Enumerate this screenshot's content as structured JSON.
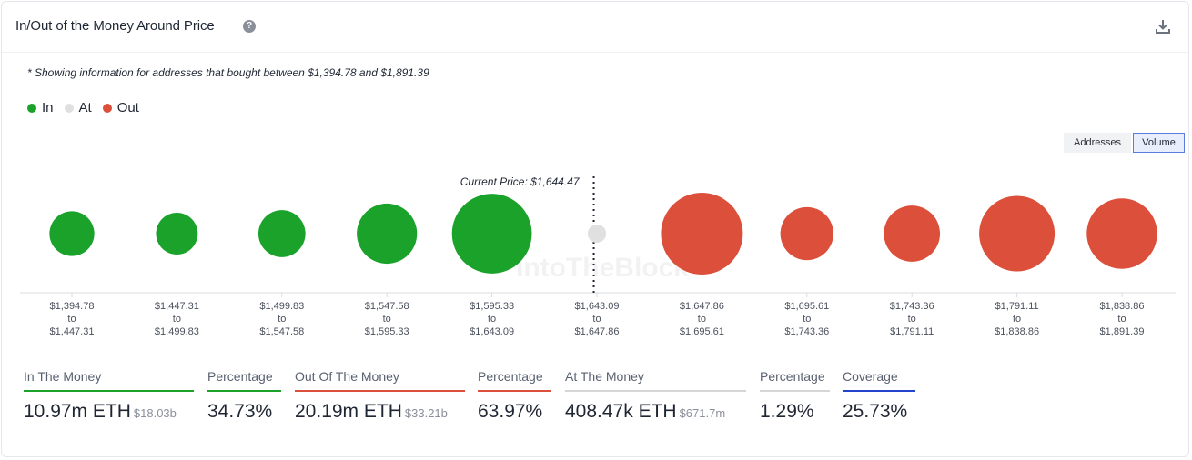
{
  "header": {
    "title": "In/Out of the Money Around Price",
    "help_icon": "question-circle-icon",
    "download_icon": "download-icon"
  },
  "note": "* Showing information for addresses that bought between $1,394.78 and $1,891.39",
  "legend": [
    {
      "label": "In",
      "color": "#1aa22a"
    },
    {
      "label": "At",
      "color": "#e0e0e0"
    },
    {
      "label": "Out",
      "color": "#dc4f3a"
    }
  ],
  "toggles": {
    "addresses": "Addresses",
    "volume": "Volume",
    "selected": "Volume"
  },
  "watermark": "IntoTheBlock",
  "chart_data": {
    "type": "bubble",
    "current_price_label": "Current Price: $1,644.47",
    "categories": [
      [
        "$1,394.78",
        "to",
        "$1,447.31"
      ],
      [
        "$1,447.31",
        "to",
        "$1,499.83"
      ],
      [
        "$1,499.83",
        "to",
        "$1,547.58"
      ],
      [
        "$1,547.58",
        "to",
        "$1,595.33"
      ],
      [
        "$1,595.33",
        "to",
        "$1,643.09"
      ],
      [
        "$1,643.09",
        "to",
        "$1,647.86"
      ],
      [
        "$1,647.86",
        "to",
        "$1,695.61"
      ],
      [
        "$1,695.61",
        "to",
        "$1,743.36"
      ],
      [
        "$1,743.36",
        "to",
        "$1,791.11"
      ],
      [
        "$1,791.11",
        "to",
        "$1,838.86"
      ],
      [
        "$1,838.86",
        "to",
        "$1,891.39"
      ]
    ],
    "status": [
      "in",
      "in",
      "in",
      "in",
      "in",
      "at",
      "out",
      "out",
      "out",
      "out",
      "out"
    ],
    "relative_volume": [
      0.3,
      0.26,
      0.33,
      0.54,
      0.95,
      0.05,
      1.0,
      0.42,
      0.47,
      0.85,
      0.74
    ],
    "current_price_after_index": 5
  },
  "stats": [
    {
      "label": "In The Money",
      "value": "10.97m ETH",
      "sub": "$18.03b",
      "color": "#1aa22a"
    },
    {
      "label": "Percentage",
      "value": "34.73%",
      "sub": "",
      "color": "#1aa22a"
    },
    {
      "label": "Out Of The Money",
      "value": "20.19m ETH",
      "sub": "$33.21b",
      "color": "#dc4f3a"
    },
    {
      "label": "Percentage",
      "value": "63.97%",
      "sub": "",
      "color": "#dc4f3a"
    },
    {
      "label": "At The Money",
      "value": "408.47k ETH",
      "sub": "$671.7m",
      "color": "#d6d6d6"
    },
    {
      "label": "Percentage",
      "value": "1.29%",
      "sub": "",
      "color": "#d6d6d6"
    },
    {
      "label": "Coverage",
      "value": "25.73%",
      "sub": "",
      "color": "#2244cc"
    }
  ]
}
